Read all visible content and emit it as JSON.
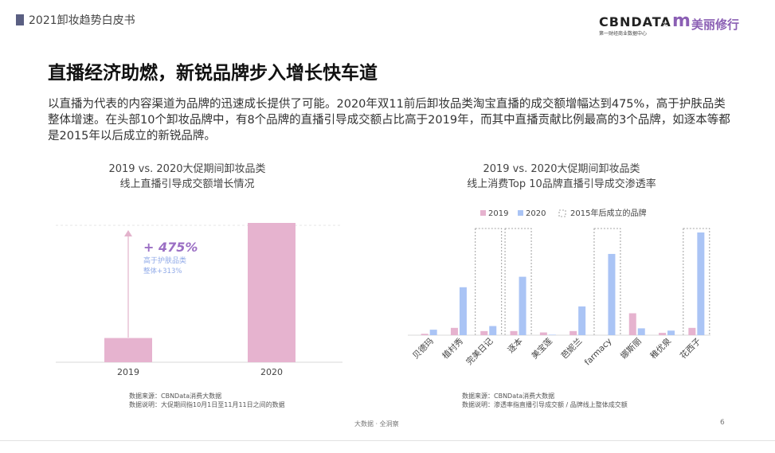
{
  "header": {
    "report_title": "2021卸妆趋势白皮书",
    "logo_cbn": "CBNDATA",
    "logo_cbn_sub": "第一财经商业数据中心",
    "logo_times": "×",
    "logo_m": "m",
    "logo_brand": "美丽修行"
  },
  "headline": "直播经济助燃，新锐品牌步入增长快车道",
  "intro": "以直播为代表的内容渠道为品牌的迅速成长提供了可能。2020年双11前后卸妆品类淘宝直播的成交额增幅达到475%，高于护肤品类整体增速。在头部10个卸妆品牌中，有8个品牌的直播引导成交额占比高于2019年，而其中直播贡献比例最高的3个品牌，如逐本等都是2015年以后成立的新锐品牌。",
  "left_chart": {
    "title_line1": "2019 vs. 2020大促期间卸妆品类",
    "title_line2": "线上直播引导成交额增长情况",
    "growth_label": "+ 475%",
    "note_line1": "高于护肤品类",
    "note_line2": "整体+313%",
    "source_line1": "数据来源：CBNData消费大数据",
    "source_line2": "数据说明：大促期间指10月1日至11月11日之间的数据"
  },
  "right_chart": {
    "title_line1": "2019 vs. 2020大促期间卸妆品类",
    "title_line2": "线上消费Top 10品牌直播引导成交渗透率",
    "legend_2019": "2019",
    "legend_2020": "2020",
    "legend_box": "2015年后成立的品牌",
    "source_line1": "数据来源：CBNData消费大数据",
    "source_line2": "数据说明：渗透率指直播引导成交额 / 品牌线上整体成交额"
  },
  "footer": {
    "text": "大数据 · 全洞察",
    "page": "6"
  },
  "colors": {
    "c2019": "#e6b3cf",
    "c2020": "#aac4f5",
    "growth": "#9b6fc4",
    "note": "#8fa9e8"
  },
  "chart_data": [
    {
      "type": "bar",
      "categories": [
        "2019",
        "2020"
      ],
      "values": [
        1,
        5.75
      ],
      "annotation": "+ 475%"
    },
    {
      "type": "bar",
      "categories": [
        "贝德玛",
        "植村秀",
        "完美日记",
        "逐本",
        "美宝莲",
        "芭妮兰",
        "farmacy",
        "娜斯丽",
        "稚优泉",
        "花西子"
      ],
      "series": [
        {
          "name": "2019",
          "values": [
            0.3,
            1.6,
            0.9,
            0.9,
            0.6,
            0.9,
            0.0,
            4.8,
            0.5,
            1.6
          ]
        },
        {
          "name": "2020",
          "values": [
            1.2,
            10.5,
            2.0,
            12.8,
            0.1,
            6.3,
            17.8,
            1.5,
            1.0,
            22.5
          ]
        }
      ],
      "highlighted_categories": [
        "完美日记",
        "逐本",
        "farmacy",
        "花西子"
      ],
      "legend": "top"
    }
  ]
}
